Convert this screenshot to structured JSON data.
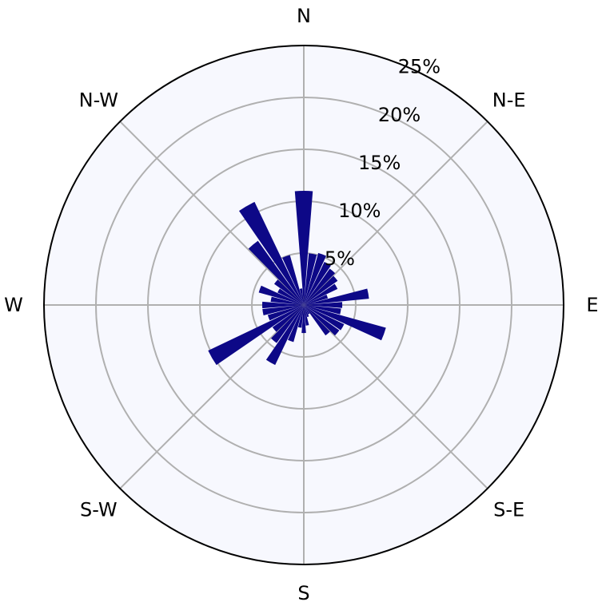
{
  "chart_data": {
    "type": "bar",
    "subtype": "wind-rose",
    "direction_labels": [
      "N",
      "N-E",
      "E",
      "S-E",
      "S",
      "S-W",
      "W",
      "N-W"
    ],
    "radial_tick_labels": [
      "5%",
      "10%",
      "15%",
      "20%",
      "25%"
    ],
    "radial_ticks": [
      5,
      10,
      15,
      20,
      25
    ],
    "rlim": [
      0,
      25
    ],
    "grid": true,
    "bar_color": "#0d0887",
    "background_color": "#f7f8fe",
    "grid_color": "#b0b0b0",
    "bins_deg": [
      0,
      10,
      20,
      30,
      40,
      50,
      60,
      70,
      80,
      90,
      100,
      110,
      120,
      130,
      140,
      150,
      160,
      170,
      180,
      190,
      200,
      210,
      220,
      230,
      240,
      250,
      260,
      270,
      280,
      290,
      300,
      310,
      320,
      330,
      340,
      350
    ],
    "values": [
      11.0,
      5.0,
      5.2,
      4.6,
      4.3,
      4.0,
      3.6,
      2.4,
      6.3,
      3.7,
      3.6,
      8.2,
      4.3,
      4.2,
      3.6,
      1.0,
      1.2,
      2.0,
      2.7,
      2.2,
      3.7,
      6.4,
      4.5,
      3.7,
      10.2,
      3.6,
      4.0,
      4.0,
      3.2,
      4.5,
      2.8,
      3.5,
      7.6,
      11.0,
      5.0,
      1.6
    ]
  }
}
